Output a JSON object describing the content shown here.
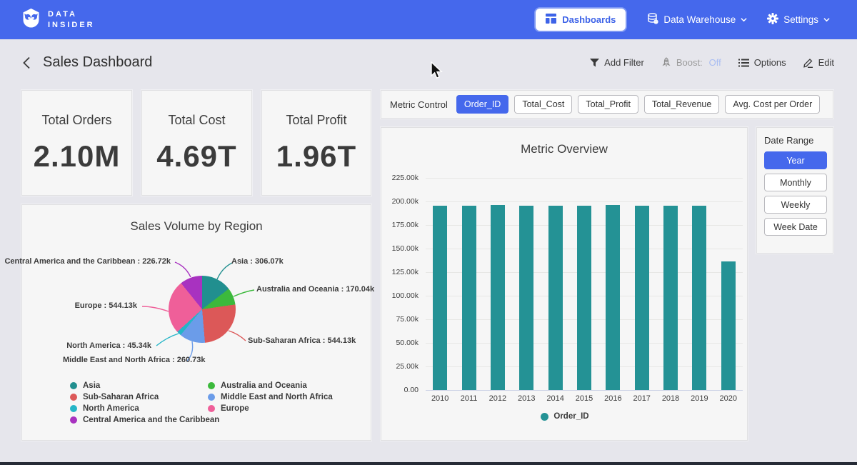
{
  "navbar": {
    "brand_line1": "DATA",
    "brand_line2": "INSIDER",
    "dashboards_label": "Dashboards",
    "data_warehouse_label": "Data Warehouse",
    "settings_label": "Settings"
  },
  "header": {
    "title": "Sales Dashboard",
    "add_filter_label": "Add Filter",
    "boost_label": "Boost:",
    "boost_value": "Off",
    "options_label": "Options",
    "edit_label": "Edit"
  },
  "kpis": [
    {
      "label": "Total Orders",
      "value": "2.10M"
    },
    {
      "label": "Total Cost",
      "value": "4.69T"
    },
    {
      "label": "Total Profit",
      "value": "1.96T"
    }
  ],
  "metric_control": {
    "label": "Metric Control",
    "options": [
      "Order_ID",
      "Total_Cost",
      "Total_Profit",
      "Total_Revenue",
      "Avg. Cost per Order"
    ],
    "selected": "Order_ID"
  },
  "date_range": {
    "label": "Date Range",
    "options": [
      "Year",
      "Monthly",
      "Weekly",
      "Week Date"
    ],
    "selected": "Year"
  },
  "chart_data": [
    {
      "type": "bar",
      "title": "Metric Overview",
      "categories": [
        "2010",
        "2011",
        "2012",
        "2013",
        "2014",
        "2015",
        "2016",
        "2017",
        "2018",
        "2019",
        "2020"
      ],
      "series": [
        {
          "name": "Order_ID",
          "values": [
            195500,
            195500,
            196500,
            195500,
            195500,
            195500,
            196500,
            195500,
            195500,
            195500,
            136000
          ]
        }
      ],
      "ylim": [
        0,
        225000
      ],
      "yticks": [
        "225.00k",
        "200.00k",
        "175.00k",
        "150.00k",
        "125.00k",
        "100.00k",
        "75.00k",
        "50.00k",
        "25.00k",
        "0.00"
      ],
      "bar_color": "#249295",
      "grid": true,
      "legend_position": "bottom"
    },
    {
      "type": "pie",
      "title": "Sales Volume by Region",
      "slices": [
        {
          "name": "Asia",
          "label": "Asia : 306.07k",
          "value": 306070,
          "color": "#218f8f"
        },
        {
          "name": "Australia and Oceania",
          "label": "Australia and Oceania : 170.04k",
          "value": 170040,
          "color": "#3cb93c"
        },
        {
          "name": "Sub-Saharan Africa",
          "label": "Sub-Saharan Africa : 544.13k",
          "value": 544130,
          "color": "#dc5858"
        },
        {
          "name": "Middle East and North Africa",
          "label": "Middle East and North Africa : 260.73k",
          "value": 260730,
          "color": "#6b9ce9"
        },
        {
          "name": "North America",
          "label": "North America : 45.34k",
          "value": 45340,
          "color": "#25b5c7"
        },
        {
          "name": "Europe",
          "label": "Europe : 544.13k",
          "value": 544130,
          "color": "#ef5f99"
        },
        {
          "name": "Central America and the Caribbean",
          "label": "Central America and the Caribbean : 226.72k",
          "value": 226720,
          "color": "#a832c0"
        }
      ],
      "legend_position": "bottom"
    }
  ],
  "colors": {
    "accent_blue": "#4568ec",
    "page_background": "#e6e6ec",
    "card_background": "#f6f6f6",
    "bar_teal": "#249295",
    "boost_off": "#a9bdf2"
  }
}
